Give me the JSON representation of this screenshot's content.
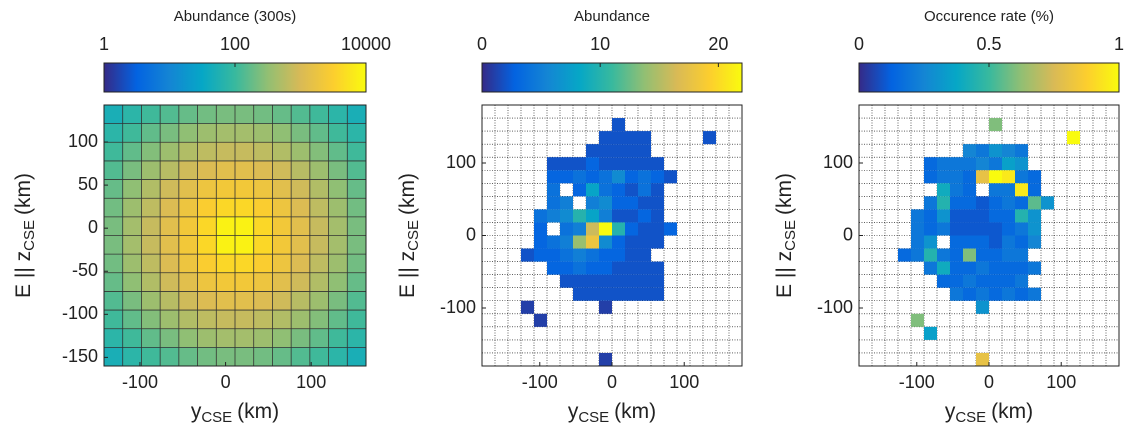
{
  "colormap": [
    "#352a87",
    "#0363e1",
    "#1485d4",
    "#06a7c6",
    "#38b99e",
    "#92bf73",
    "#d9ba56",
    "#fcce2e",
    "#f9fb0e"
  ],
  "chart_data": [
    {
      "type": "heatmap",
      "colorbar": {
        "label": "Abundance (300s)",
        "lim": [
          1,
          10000
        ],
        "ticks": [
          1,
          100,
          10000
        ],
        "log": true
      },
      "xlabel": {
        "text": "y",
        "sub": "CSE",
        "unit": "(km)"
      },
      "ylabel": {
        "text": "E || z",
        "sub": "CSE",
        "unit": "(km)"
      },
      "xlim": [
        -142,
        164
      ],
      "ylim": [
        -160,
        143
      ],
      "xticks": [
        -100,
        0,
        100
      ],
      "yticks": [
        -150,
        -100,
        -50,
        0,
        50,
        100
      ],
      "z": [
        [
          50,
          75,
          110,
          140,
          180,
          210,
          230,
          230,
          210,
          180,
          140,
          110,
          75,
          50
        ],
        [
          75,
          110,
          170,
          230,
          310,
          380,
          420,
          420,
          380,
          310,
          230,
          170,
          110,
          75
        ],
        [
          110,
          170,
          260,
          380,
          520,
          650,
          740,
          740,
          650,
          520,
          380,
          260,
          170,
          110
        ],
        [
          140,
          230,
          380,
          580,
          850,
          1100,
          1300,
          1300,
          1100,
          850,
          580,
          380,
          230,
          140
        ],
        [
          180,
          310,
          520,
          850,
          1300,
          1900,
          2300,
          2300,
          1900,
          1300,
          850,
          520,
          310,
          180
        ],
        [
          210,
          380,
          650,
          1100,
          1900,
          3000,
          4000,
          4000,
          3000,
          1900,
          1100,
          650,
          380,
          210
        ],
        [
          230,
          420,
          740,
          1300,
          2300,
          4000,
          8000,
          8000,
          4000,
          2300,
          1300,
          740,
          420,
          230
        ],
        [
          230,
          420,
          740,
          1300,
          2300,
          4000,
          8000,
          8000,
          4000,
          2300,
          1300,
          740,
          420,
          230
        ],
        [
          210,
          380,
          650,
          1100,
          1900,
          3000,
          4000,
          4000,
          3000,
          1900,
          1100,
          650,
          380,
          210
        ],
        [
          180,
          310,
          520,
          850,
          1300,
          1900,
          2300,
          2300,
          1900,
          1300,
          850,
          520,
          310,
          180
        ],
        [
          140,
          230,
          380,
          580,
          850,
          1100,
          1300,
          1300,
          1100,
          850,
          580,
          380,
          230,
          140
        ],
        [
          110,
          170,
          260,
          380,
          520,
          650,
          740,
          740,
          650,
          520,
          380,
          260,
          170,
          110
        ],
        [
          75,
          110,
          170,
          230,
          310,
          380,
          420,
          420,
          380,
          310,
          230,
          170,
          110,
          75
        ],
        [
          50,
          75,
          110,
          140,
          180,
          210,
          230,
          230,
          210,
          180,
          140,
          110,
          75,
          50
        ]
      ]
    },
    {
      "type": "cells",
      "colorbar": {
        "label": "Abundance",
        "lim": [
          0,
          22
        ],
        "ticks": [
          0,
          10,
          20
        ],
        "log": false
      },
      "xlabel": {
        "text": "y",
        "sub": "CSE",
        "unit": "(km)"
      },
      "ylabel": {
        "text": "E || z",
        "sub": "CSE",
        "unit": "(km)"
      },
      "xlim": [
        -180,
        180
      ],
      "ylim": [
        -180,
        180
      ],
      "xticks": [
        -100,
        0,
        100
      ],
      "yticks": [
        -100,
        0,
        100
      ],
      "bin_width": 18,
      "x": [
        9,
        -9,
        9,
        27,
        45,
        135,
        -27,
        -9,
        9,
        27,
        45,
        -81,
        -63,
        -45,
        -27,
        -9,
        9,
        27,
        45,
        63,
        -81,
        -63,
        -45,
        -27,
        -9,
        9,
        27,
        45,
        63,
        81,
        -81,
        -45,
        -27,
        -9,
        9,
        27,
        45,
        63,
        -81,
        -63,
        -27,
        -9,
        9,
        27,
        45,
        63,
        -99,
        -81,
        -63,
        -45,
        -27,
        -9,
        9,
        27,
        45,
        63,
        -99,
        -63,
        -45,
        -27,
        -9,
        9,
        27,
        45,
        63,
        81,
        -99,
        -81,
        -63,
        -45,
        -27,
        -9,
        9,
        27,
        45,
        63,
        -117,
        -99,
        -81,
        -63,
        -45,
        -27,
        -9,
        9,
        27,
        45,
        -81,
        -63,
        -45,
        -27,
        -9,
        9,
        27,
        45,
        63,
        -63,
        -45,
        -27,
        -9,
        9,
        27,
        45,
        63,
        -45,
        -27,
        -9,
        9,
        27,
        45,
        63,
        -117,
        -9,
        -99,
        -9
      ],
      "y": [
        153,
        135,
        135,
        135,
        135,
        135,
        117,
        117,
        117,
        117,
        117,
        99,
        99,
        99,
        99,
        99,
        99,
        99,
        99,
        99,
        81,
        81,
        81,
        81,
        81,
        81,
        81,
        81,
        81,
        81,
        63,
        63,
        63,
        63,
        63,
        63,
        63,
        63,
        45,
        45,
        45,
        45,
        45,
        45,
        45,
        45,
        27,
        27,
        27,
        27,
        27,
        27,
        27,
        27,
        27,
        27,
        9,
        9,
        9,
        9,
        9,
        9,
        9,
        9,
        9,
        9,
        -9,
        -9,
        -9,
        -9,
        -9,
        -9,
        -9,
        -9,
        -9,
        -9,
        -27,
        -27,
        -27,
        -27,
        -27,
        -27,
        -27,
        -27,
        -27,
        -27,
        -45,
        -45,
        -45,
        -45,
        -45,
        -45,
        -45,
        -45,
        -45,
        -63,
        -63,
        -63,
        -63,
        -63,
        -63,
        -63,
        -63,
        -81,
        -81,
        -81,
        -81,
        -81,
        -81,
        -81,
        -99,
        -99,
        -117,
        -171
      ],
      "values": [
        2,
        2,
        2,
        2,
        2,
        2,
        2,
        2,
        2,
        2,
        2,
        2,
        2,
        2,
        3,
        2,
        2,
        2,
        2,
        2,
        3,
        3,
        4,
        3,
        4,
        6,
        3,
        4,
        3,
        2,
        4,
        3,
        8,
        4,
        3,
        2,
        4,
        2,
        4,
        5,
        5,
        6,
        3,
        3,
        2,
        2,
        4,
        5,
        6,
        10,
        8,
        5,
        2,
        2,
        3,
        2,
        3,
        4,
        5,
        16,
        22,
        10,
        3,
        2,
        2,
        3,
        3,
        4,
        5,
        14,
        18,
        6,
        3,
        2,
        2,
        2,
        2,
        3,
        3,
        4,
        5,
        4,
        3,
        3,
        2,
        2,
        3,
        3,
        4,
        3,
        3,
        2,
        2,
        2,
        2,
        2,
        2,
        2,
        2,
        2,
        2,
        2,
        2,
        2,
        2,
        2,
        2,
        2,
        2,
        2,
        1,
        1,
        1,
        1
      ]
    },
    {
      "type": "cells",
      "colorbar": {
        "label": "Occurence rate (%)",
        "lim": [
          0,
          1
        ],
        "ticks": [
          0,
          0.5,
          1
        ],
        "log": false
      },
      "xlabel": {
        "text": "y",
        "sub": "CSE",
        "unit": "(km)"
      },
      "ylabel": {
        "text": "E || z",
        "sub": "CSE",
        "unit": "(km)"
      },
      "xlim": [
        -180,
        180
      ],
      "ylim": [
        -180,
        180
      ],
      "xticks": [
        -100,
        0,
        100
      ],
      "yticks": [
        -100,
        0,
        100
      ],
      "bin_width": 18,
      "x": [
        9,
        117,
        -27,
        -9,
        9,
        27,
        45,
        -81,
        -63,
        -45,
        -27,
        -9,
        9,
        27,
        45,
        -81,
        -63,
        -45,
        -27,
        -9,
        9,
        27,
        45,
        63,
        -63,
        -45,
        -27,
        9,
        27,
        45,
        63,
        -81,
        -63,
        -45,
        -27,
        -9,
        9,
        27,
        45,
        63,
        81,
        -99,
        -81,
        -63,
        -45,
        -27,
        -9,
        9,
        27,
        45,
        63,
        -99,
        -81,
        -63,
        -45,
        -27,
        -9,
        9,
        27,
        45,
        63,
        -99,
        -81,
        -45,
        -27,
        -9,
        9,
        27,
        45,
        63,
        -117,
        -99,
        -81,
        -63,
        -45,
        -27,
        -9,
        9,
        27,
        45,
        -81,
        -63,
        -45,
        -27,
        -9,
        9,
        27,
        45,
        63,
        -63,
        -45,
        -27,
        -9,
        9,
        27,
        45,
        -45,
        -27,
        -9,
        9,
        27,
        45,
        63,
        -9,
        -99,
        -81,
        -9
      ],
      "y": [
        153,
        135,
        117,
        117,
        117,
        117,
        117,
        99,
        99,
        99,
        99,
        99,
        99,
        99,
        99,
        81,
        81,
        81,
        81,
        81,
        81,
        81,
        81,
        81,
        63,
        63,
        63,
        63,
        63,
        63,
        63,
        45,
        45,
        45,
        45,
        45,
        45,
        45,
        45,
        45,
        45,
        27,
        27,
        27,
        27,
        27,
        27,
        27,
        27,
        27,
        27,
        9,
        9,
        9,
        9,
        9,
        9,
        9,
        9,
        9,
        9,
        -9,
        -9,
        -9,
        -9,
        -9,
        -9,
        -9,
        -9,
        -9,
        -27,
        -27,
        -27,
        -27,
        -27,
        -27,
        -27,
        -27,
        -27,
        -27,
        -45,
        -45,
        -45,
        -45,
        -45,
        -45,
        -45,
        -45,
        -45,
        -63,
        -63,
        -63,
        -63,
        -63,
        -63,
        -63,
        -81,
        -81,
        -81,
        -81,
        -81,
        -81,
        -81,
        -99,
        -117,
        -135,
        -171
      ],
      "values": [
        0.6,
        1,
        0.25,
        0.2,
        0.3,
        0.25,
        0.2,
        0.15,
        0.2,
        0.2,
        0.2,
        0.25,
        0.2,
        0.35,
        0.3,
        0.15,
        0.2,
        0.2,
        0.15,
        0.8,
        1,
        0.95,
        0.2,
        0.15,
        0.4,
        0.2,
        0.15,
        0.2,
        0.2,
        0.95,
        0.15,
        0.2,
        0.45,
        0.15,
        0.15,
        0.1,
        0.15,
        0.2,
        0.15,
        0.55,
        0.3,
        0.2,
        0.15,
        0.3,
        0.1,
        0.1,
        0.1,
        0.15,
        0.15,
        0.45,
        0.3,
        0.2,
        0.15,
        0.2,
        0.1,
        0.1,
        0.1,
        0.1,
        0.15,
        0.2,
        0.3,
        0.2,
        0.3,
        0.15,
        0.15,
        0.15,
        0.1,
        0.2,
        0.15,
        0.25,
        0.15,
        0.2,
        0.45,
        0.2,
        0.15,
        0.6,
        0.15,
        0.15,
        0.2,
        0.2,
        0.2,
        0.4,
        0.15,
        0.15,
        0.2,
        0.15,
        0.15,
        0.15,
        0.2,
        0.15,
        0.15,
        0.2,
        0.15,
        0.15,
        0.15,
        0.2,
        0.2,
        0.15,
        0.2,
        0.15,
        0.2,
        0.15,
        0.2,
        0.3,
        0.6,
        0.35,
        0.8
      ]
    }
  ]
}
